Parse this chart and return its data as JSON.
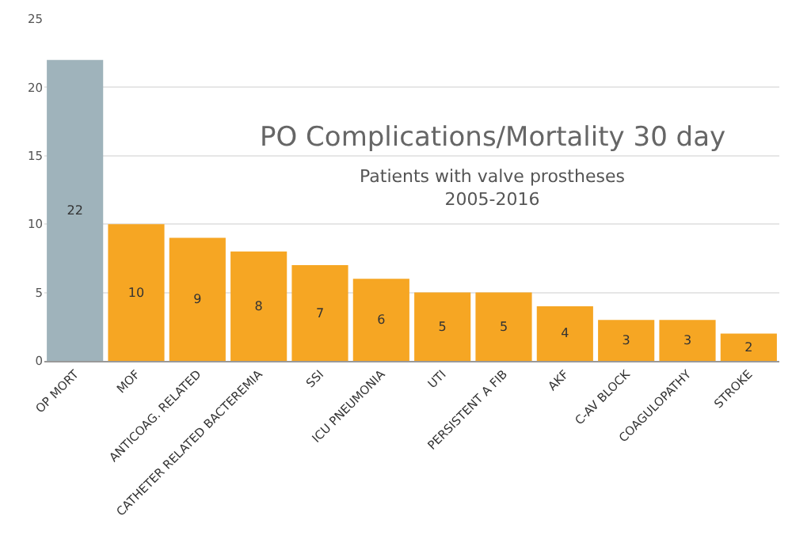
{
  "chart_data": {
    "type": "bar",
    "title": "PO Complications/Mortality 30 day",
    "subtitle": "Patients with valve prostheses\n2005-2016",
    "categories": [
      "OP MORT",
      "MOF",
      "ANTICOAG. RELATED",
      "CATHETER RELATED BACTEREMIA",
      "SSI",
      "ICU PNEUMONIA",
      "UTI",
      "PERSISTENT A FIB",
      "AKF",
      "C-AV BLOCK",
      "COAGULOPATHY",
      "STROKE"
    ],
    "values": [
      22,
      10,
      9,
      8,
      7,
      6,
      5,
      5,
      4,
      3,
      3,
      2
    ],
    "colors": [
      "#9fb3bb",
      "#f6a623",
      "#f6a623",
      "#f6a623",
      "#f6a623",
      "#f6a623",
      "#f6a623",
      "#f6a623",
      "#f6a623",
      "#f6a623",
      "#f6a623",
      "#f6a623"
    ],
    "ylim": [
      0,
      25
    ],
    "yticks": [
      0,
      5,
      10,
      15,
      20,
      25
    ],
    "grid": "y",
    "data_labels": true,
    "legend": false
  }
}
